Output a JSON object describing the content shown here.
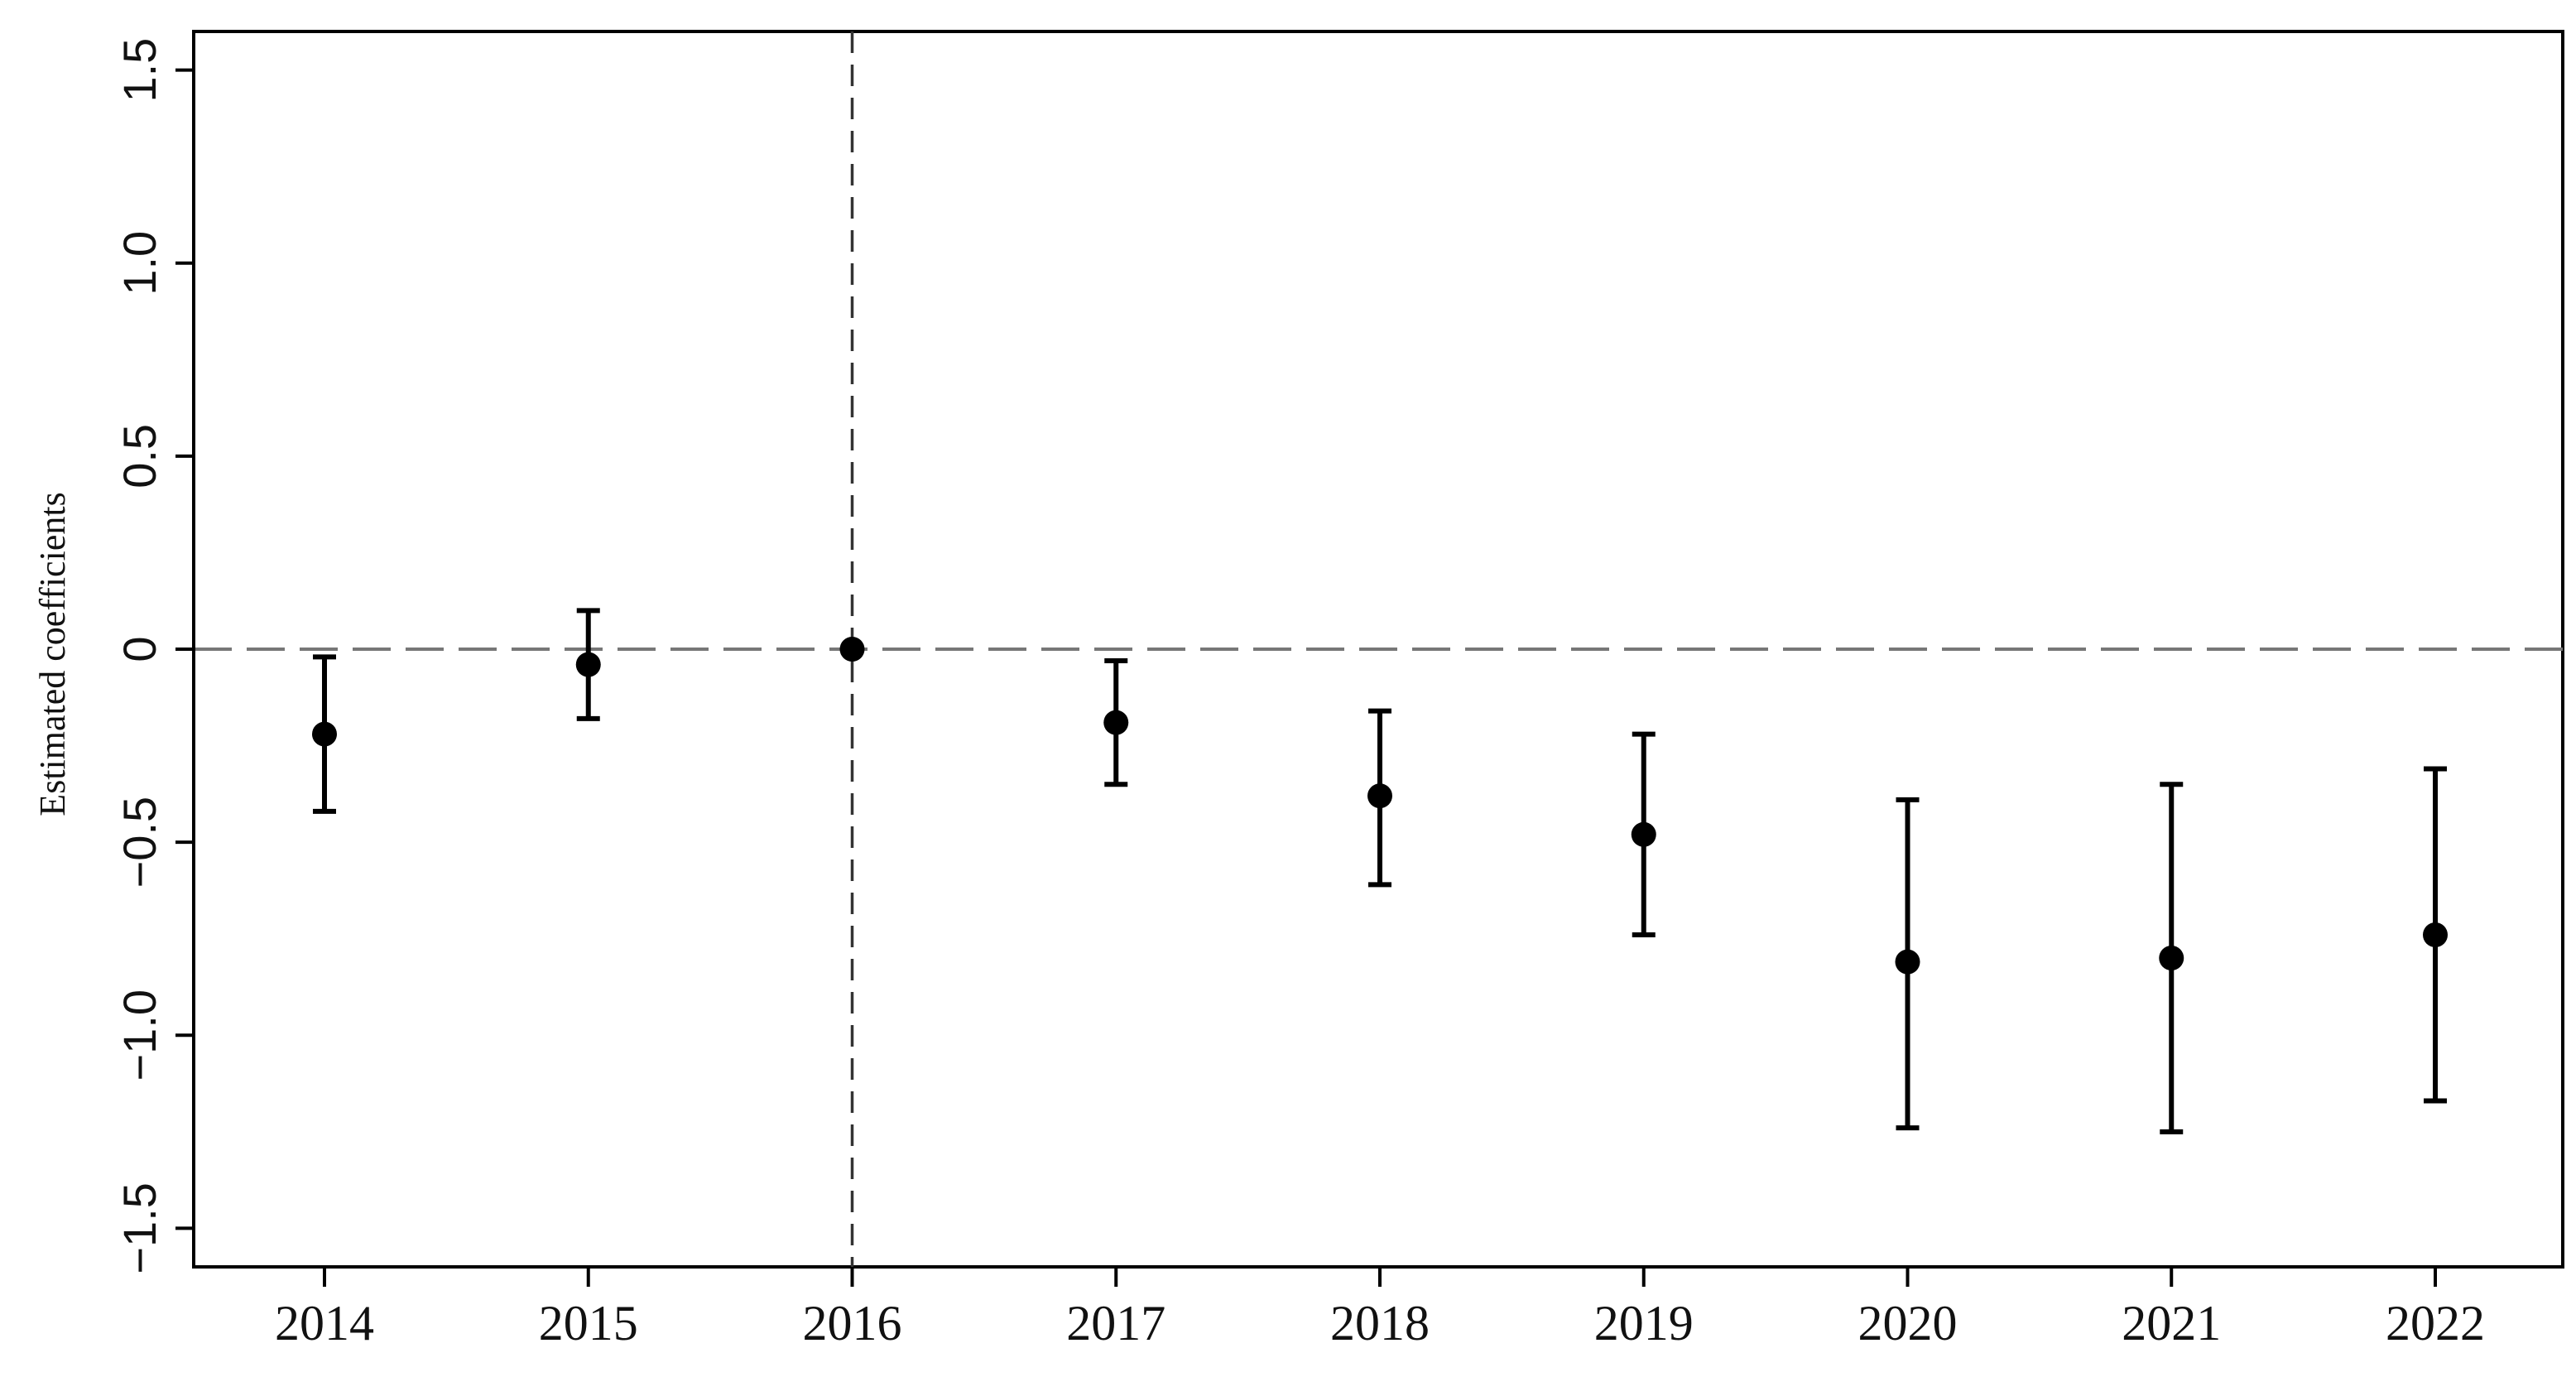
{
  "chart_data": {
    "type": "scatter",
    "title": "",
    "xlabel": "",
    "ylabel": "Estimated coefficients",
    "x": [
      "2014",
      "2015",
      "2016",
      "2017",
      "2018",
      "2019",
      "2020",
      "2021",
      "2022"
    ],
    "estimates": [
      -0.22,
      -0.04,
      0.0,
      -0.19,
      -0.38,
      -0.48,
      -0.81,
      -0.8,
      -0.74
    ],
    "ci_lower": [
      -0.42,
      -0.18,
      0.0,
      -0.35,
      -0.61,
      -0.74,
      -1.24,
      -1.25,
      -1.17
    ],
    "ci_upper": [
      -0.02,
      0.1,
      0.0,
      -0.03,
      -0.16,
      -0.22,
      -0.39,
      -0.35,
      -0.31
    ],
    "yticks": [
      "-1.5",
      "-1.0",
      "-0.5",
      "0",
      "0.5",
      "1.0",
      "1.5"
    ],
    "ylim": [
      -1.6,
      1.6
    ],
    "reference_lines": {
      "horizontal_y": 0,
      "vertical_x": "2016"
    },
    "grid": false,
    "legend": "none",
    "colors": {
      "marker": "#000000",
      "reference_line": "#777777",
      "axis": "#000000"
    }
  }
}
